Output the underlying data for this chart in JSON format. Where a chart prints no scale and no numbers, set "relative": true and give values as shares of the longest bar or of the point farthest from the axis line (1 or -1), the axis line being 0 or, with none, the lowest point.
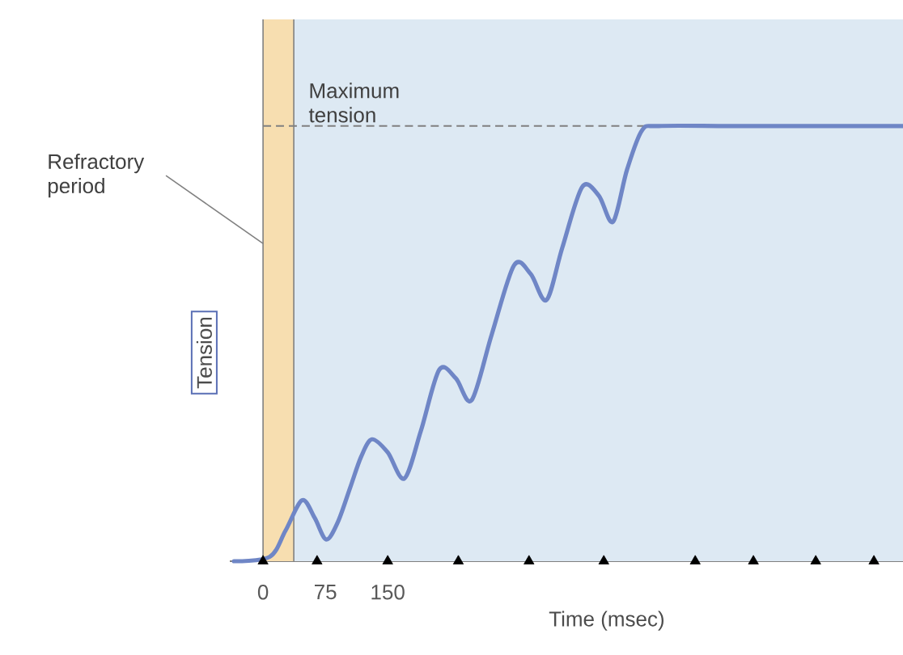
{
  "chart_data": {
    "type": "line",
    "xlabel": "Time (msec)",
    "ylabel": "Tension",
    "relative": true,
    "xlim": [
      -40,
      770
    ],
    "xticks": [
      0,
      75,
      150
    ],
    "tick_labels": "x",
    "series": [
      {
        "color": "#6f86c6",
        "x": [
          -35,
          8,
          27,
          47,
          62,
          76,
          90,
          105,
          118,
          131,
          150,
          170,
          190,
          212,
          232,
          251,
          275,
          302,
          322,
          341,
          360,
          384,
          404,
          421,
          438,
          456,
          476,
          560,
          660,
          770
        ],
        "values": [
          0,
          0.01,
          0.07,
          0.14,
          0.1,
          0.05,
          0.09,
          0.17,
          0.24,
          0.28,
          0.25,
          0.19,
          0.3,
          0.44,
          0.42,
          0.37,
          0.52,
          0.68,
          0.66,
          0.6,
          0.72,
          0.86,
          0.84,
          0.78,
          0.9,
          0.99,
          1,
          1,
          1,
          1
        ]
      },
      {
        "type": "scatter",
        "marker": "triangle",
        "color": "#000000",
        "x": [
          0,
          65,
          150,
          235,
          320,
          410,
          520,
          590,
          665,
          735
        ],
        "values": [
          0,
          0,
          0,
          0,
          0,
          0,
          0,
          0,
          0,
          0
        ]
      }
    ],
    "bands": [
      {
        "axis": "x",
        "from": 0,
        "to": 37,
        "label": "Refractory period",
        "color": "#f7deb0"
      }
    ],
    "ref_lines": [
      {
        "axis": "y",
        "value": 1,
        "label": "Maximum tension",
        "line_style": "dashed",
        "color": "#808080"
      }
    ]
  }
}
